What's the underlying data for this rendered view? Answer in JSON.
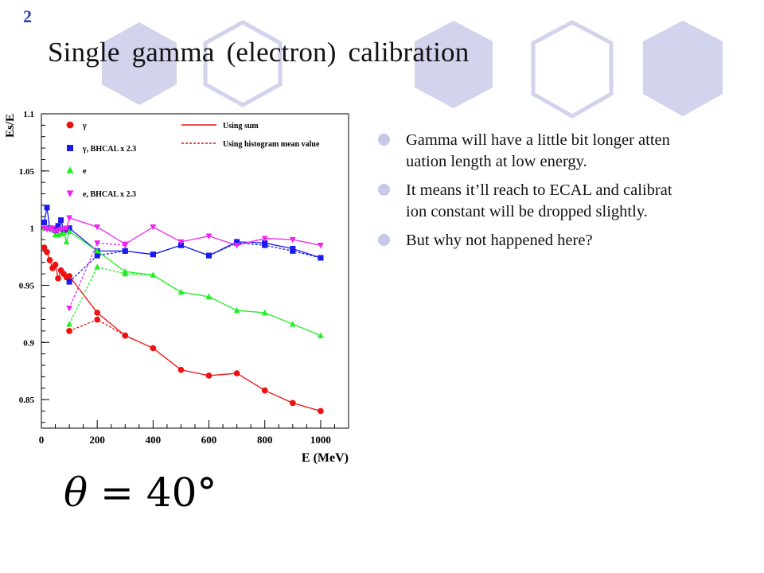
{
  "slide": {
    "number": "2",
    "title": "Single gamma (electron) calibration"
  },
  "colors": {
    "hex_fill": "#cfd0ea",
    "hex_stroke": "#cfd0ea",
    "bullet": "#c6c8e8",
    "slide_number": "#2d3ea8"
  },
  "bullets": [
    {
      "line1": "Gamma will have a little bit longer atten",
      "line2": "uation length at low energy."
    },
    {
      "line1": "It means it’ll reach to ECAL and calibrat",
      "line2": "ion constant will be dropped slightly."
    },
    {
      "line1": "But why not happened here?",
      "line2": ""
    }
  ],
  "formula": {
    "symbol": "θ",
    "rest": " = 40°"
  },
  "chart_data": {
    "type": "line",
    "title": "",
    "xlabel": "E (MeV)",
    "ylabel": "Es/E",
    "xlim": [
      0,
      1100
    ],
    "ylim": [
      0.825,
      1.1
    ],
    "xticks": [
      0,
      200,
      400,
      600,
      800,
      1000
    ],
    "xtick_labels": [
      "0",
      "200",
      "400",
      "600",
      "800",
      "1000"
    ],
    "yticks": [
      0.85,
      0.9,
      0.95,
      1.0,
      1.05,
      1.1
    ],
    "ytick_labels": [
      "0.85",
      "0.9",
      "0.95",
      "1",
      "1.05",
      "1.1"
    ],
    "legend_markers": [
      {
        "label": "γ",
        "marker": "circle",
        "color": "#ee1111"
      },
      {
        "label": "γ, BHCAL x 2.3",
        "marker": "square",
        "color": "#1a1aee"
      },
      {
        "label": "e",
        "marker": "triangle-up",
        "color": "#22ee22"
      },
      {
        "label": "e, BHCAL x 2.3",
        "marker": "triangle-down",
        "color": "#ee22ee"
      }
    ],
    "legend_lines": [
      {
        "label": "Using sum",
        "style": "solid"
      },
      {
        "label": "Using histogram mean value",
        "style": "dashed"
      }
    ],
    "grid": false,
    "series": [
      {
        "name": "γ",
        "method": "sum",
        "marker": "circle",
        "color": "#ee1111",
        "x": [
          10,
          20,
          30,
          40,
          50,
          60,
          70,
          80,
          90,
          100,
          200,
          300,
          400,
          500,
          600,
          700,
          800,
          900,
          1000
        ],
        "y": [
          0.983,
          0.979,
          0.972,
          0.965,
          0.968,
          0.956,
          0.963,
          0.96,
          0.957,
          0.958,
          0.926,
          0.906,
          0.895,
          0.876,
          0.871,
          0.873,
          0.858,
          0.847,
          0.84
        ]
      },
      {
        "name": "γ",
        "method": "histogram mean",
        "marker": "circle",
        "color": "#ee1111",
        "x": [
          100,
          200,
          300
        ],
        "y": [
          0.91,
          0.92,
          0.906
        ]
      },
      {
        "name": "γ, BHCAL x 2.3",
        "method": "sum",
        "marker": "square",
        "color": "#1a1aee",
        "x": [
          10,
          20,
          30,
          40,
          50,
          60,
          70,
          80,
          90,
          100,
          200,
          300,
          400,
          500,
          600,
          700,
          800,
          900,
          1000
        ],
        "y": [
          1.005,
          1.018,
          1.0,
          0.999,
          0.998,
          1.002,
          1.007,
          0.998,
          0.999,
          1.0,
          0.98,
          0.98,
          0.977,
          0.985,
          0.976,
          0.988,
          0.987,
          0.982,
          0.974
        ]
      },
      {
        "name": "γ, BHCAL x 2.3",
        "method": "histogram mean",
        "marker": "square",
        "color": "#1a1aee",
        "x": [
          100,
          200,
          300,
          400,
          500,
          600,
          700,
          800,
          900,
          1000
        ],
        "y": [
          0.953,
          0.976,
          0.98,
          0.977,
          0.985,
          0.976,
          0.987,
          0.985,
          0.98,
          0.974
        ]
      },
      {
        "name": "e",
        "method": "sum",
        "marker": "triangle-up",
        "color": "#22ee22",
        "x": [
          10,
          20,
          30,
          40,
          50,
          60,
          70,
          80,
          90,
          100,
          200,
          300,
          400,
          500,
          600,
          700,
          800,
          900,
          1000
        ],
        "y": [
          1.0,
          1.0,
          1.0,
          0.999,
          0.994,
          0.994,
          0.995,
          0.996,
          0.988,
          0.997,
          0.98,
          0.962,
          0.959,
          0.944,
          0.94,
          0.928,
          0.926,
          0.916,
          0.906
        ]
      },
      {
        "name": "e",
        "method": "histogram mean",
        "marker": "triangle-up",
        "color": "#22ee22",
        "x": [
          100,
          200,
          300,
          400
        ],
        "y": [
          0.916,
          0.966,
          0.96,
          0.959
        ]
      },
      {
        "name": "e, BHCAL x 2.3",
        "method": "sum",
        "marker": "triangle-down",
        "color": "#ee22ee",
        "x": [
          10,
          20,
          30,
          40,
          50,
          60,
          70,
          80,
          90,
          100,
          200,
          300,
          400,
          500,
          600,
          700,
          800,
          900,
          1000
        ],
        "y": [
          1.0,
          0.999,
          0.999,
          1.0,
          0.997,
          0.998,
          0.999,
          0.999,
          1.0,
          1.009,
          1.001,
          0.986,
          1.001,
          0.988,
          0.993,
          0.985,
          0.991,
          0.99,
          0.985
        ]
      },
      {
        "name": "e, BHCAL x 2.3",
        "method": "histogram mean",
        "marker": "triangle-down",
        "color": "#ee22ee",
        "x": [
          100,
          200,
          300
        ],
        "y": [
          0.93,
          0.987,
          0.985
        ]
      }
    ]
  }
}
